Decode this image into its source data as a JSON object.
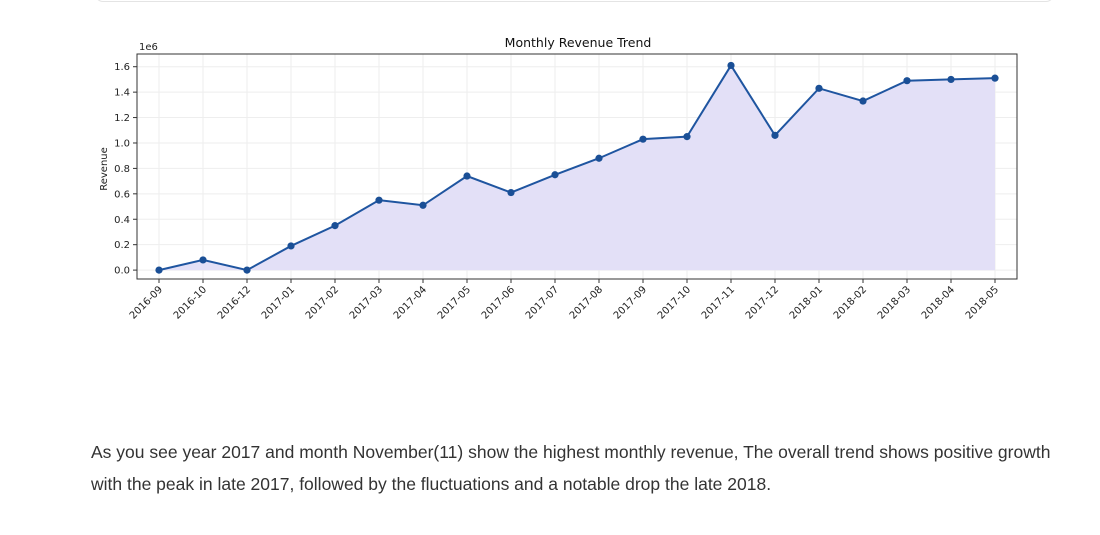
{
  "chart_data": {
    "type": "line",
    "title": "Monthly Revenue Trend",
    "xlabel": "",
    "ylabel": "Revenue",
    "y_scale_label": "1e6",
    "ylim": [
      -0.07,
      1.7
    ],
    "yticks": [
      0.0,
      0.2,
      0.4,
      0.6,
      0.8,
      1.0,
      1.2,
      1.4,
      1.6
    ],
    "ytick_labels": [
      "0.0",
      "0.2",
      "0.4",
      "0.6",
      "0.8",
      "1.0",
      "1.2",
      "1.4",
      "1.6"
    ],
    "grid": true,
    "fill_under_line": true,
    "categories": [
      "2016-09",
      "2016-10",
      "2016-12",
      "2017-01",
      "2017-02",
      "2017-03",
      "2017-04",
      "2017-05",
      "2017-06",
      "2017-07",
      "2017-08",
      "2017-09",
      "2017-10",
      "2017-11",
      "2017-12",
      "2018-01",
      "2018-02",
      "2018-03",
      "2018-04",
      "2018-05"
    ],
    "values": [
      0.0,
      0.08,
      0.0,
      0.19,
      0.35,
      0.55,
      0.51,
      0.74,
      0.61,
      0.75,
      0.88,
      1.03,
      1.05,
      1.61,
      1.06,
      1.43,
      1.33,
      1.49,
      1.5,
      1.51
    ]
  },
  "colors": {
    "line": "#1f55a0",
    "marker": "#1a4f96",
    "fill": "#e3e0f7",
    "grid": "#eeeeee",
    "axis": "#333333"
  },
  "caption": {
    "text": "As you see year 2017 and month November(11) show the highest monthly revenue, The overall trend shows positive growth with the peak in late 2017, followed by the fluctuations and a notable drop the late 2018."
  }
}
